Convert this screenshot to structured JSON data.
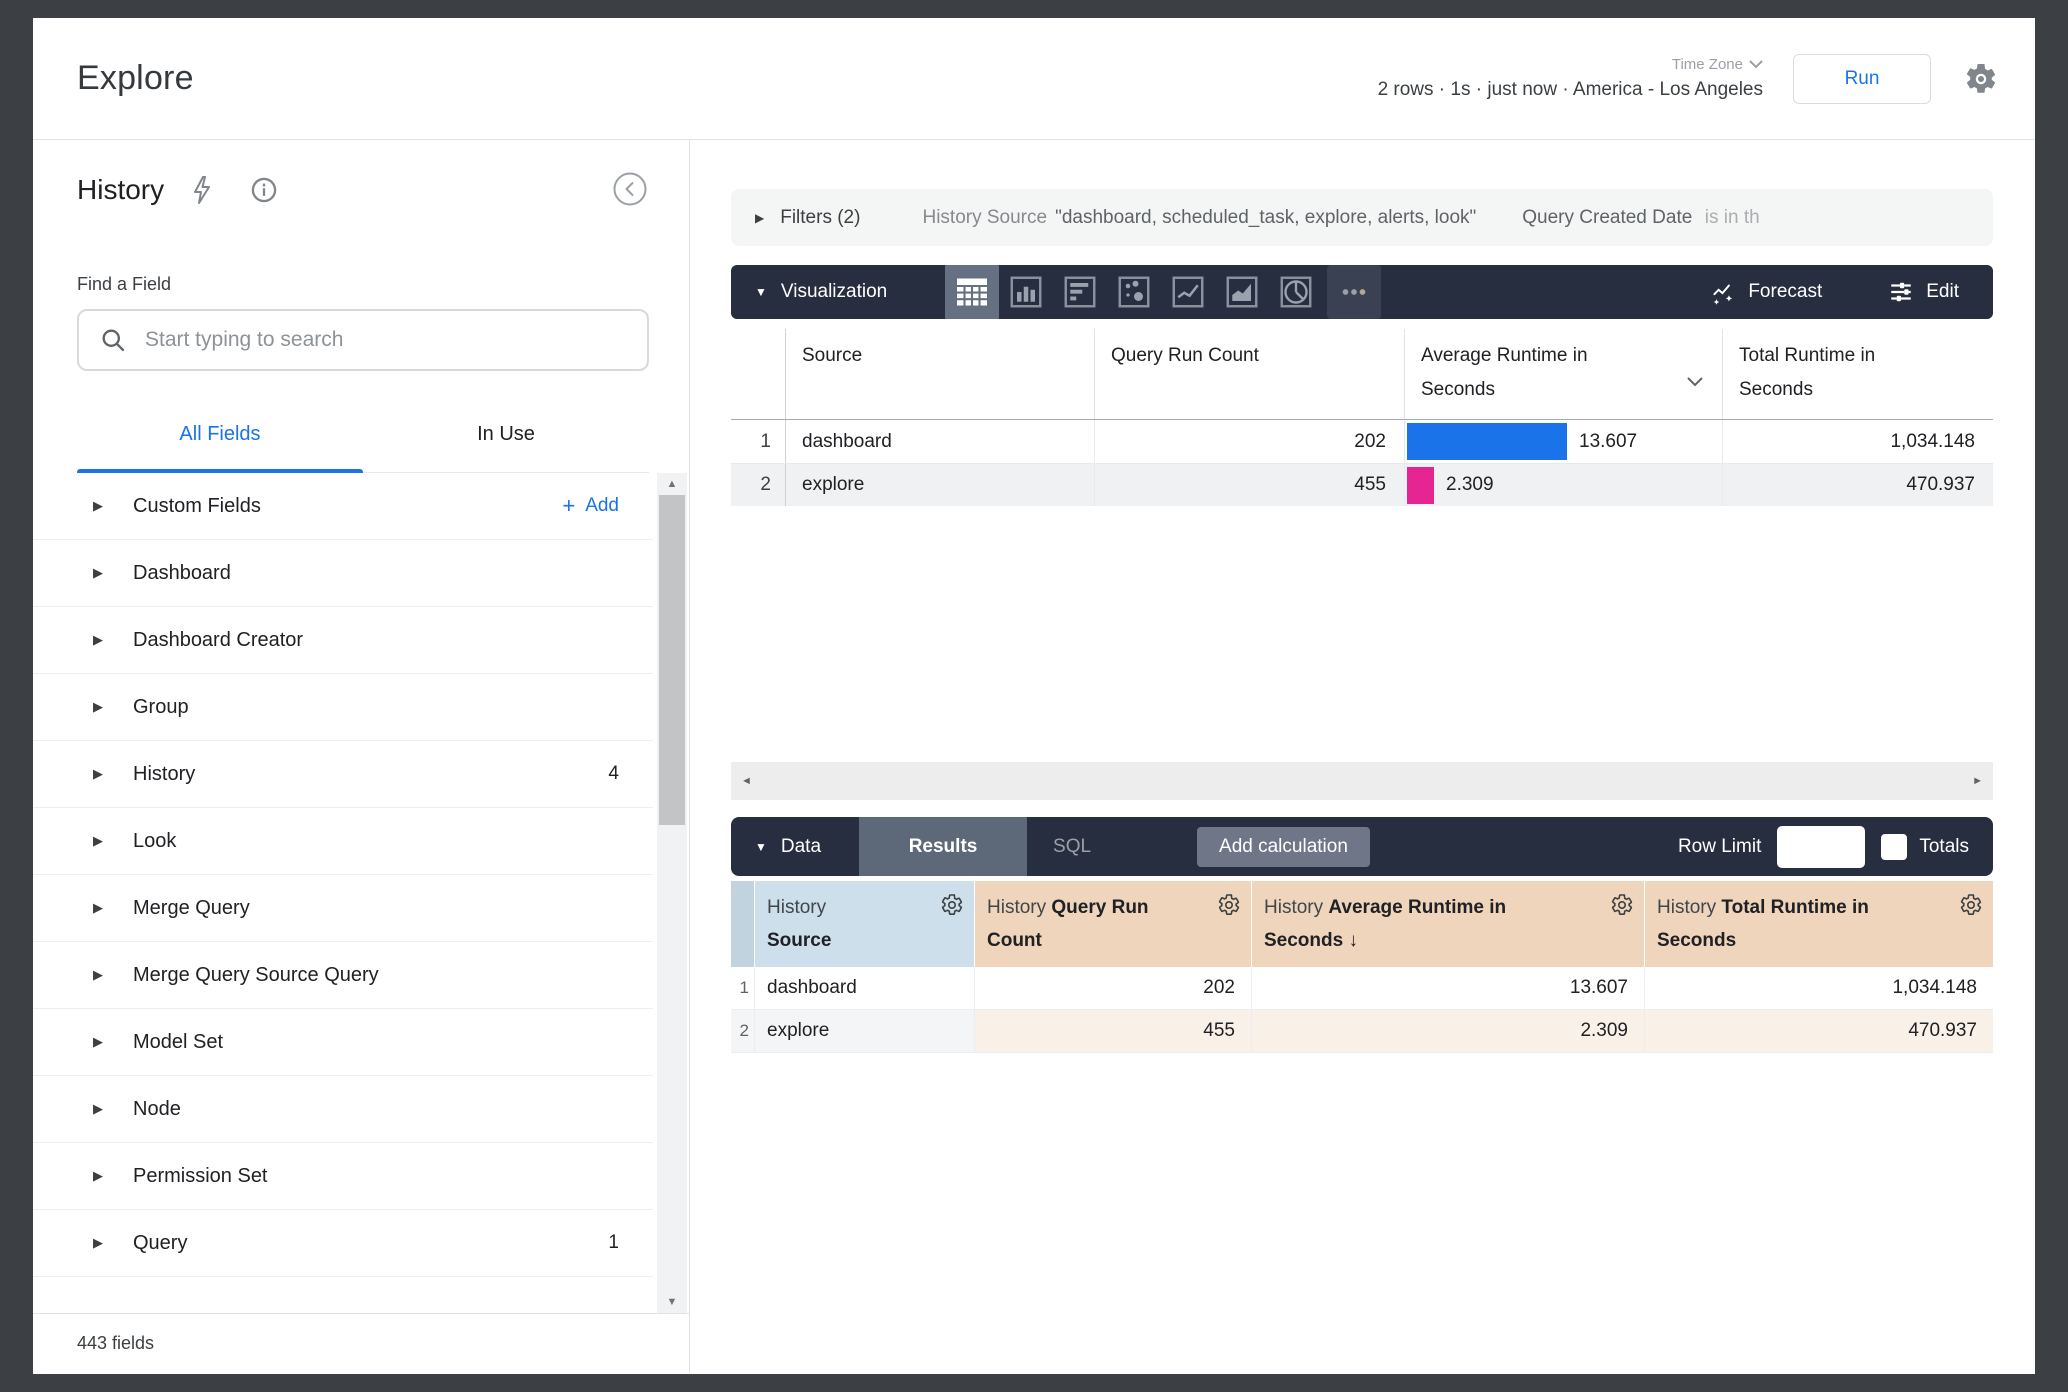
{
  "topbar": {
    "title": "Explore",
    "timezone_label": "Time Zone",
    "status": "2 rows · 1s · just now · America - Los Angeles",
    "run_label": "Run"
  },
  "sidebar": {
    "title": "History",
    "find_label": "Find a Field",
    "search_placeholder": "Start typing to search",
    "tabs": [
      {
        "label": "All Fields",
        "active": true
      },
      {
        "label": "In Use",
        "active": false
      }
    ],
    "items": [
      {
        "label": "Custom Fields",
        "add_plus": "+",
        "add_label": "Add"
      },
      {
        "label": "Dashboard"
      },
      {
        "label": "Dashboard Creator"
      },
      {
        "label": "Group"
      },
      {
        "label": "History",
        "badge": "4"
      },
      {
        "label": "Look"
      },
      {
        "label": "Merge Query"
      },
      {
        "label": "Merge Query Source Query"
      },
      {
        "label": "Model Set"
      },
      {
        "label": "Node"
      },
      {
        "label": "Permission Set"
      },
      {
        "label": "Query",
        "badge": "1"
      }
    ],
    "footer": "443 fields"
  },
  "filters": {
    "toggle_label": "Filters (2)",
    "filter1_field": "History Source",
    "filter1_value": "\"dashboard, scheduled_task, explore, alerts, look\"",
    "filter2_field": "Query Created Date",
    "filter2_value": "is in th"
  },
  "vis": {
    "label": "Visualization",
    "icons": [
      "table",
      "column-chart",
      "bar-chart",
      "scatter",
      "line-chart",
      "area-chart",
      "pie-chart",
      "more"
    ],
    "selected_icon": "table",
    "forecast_label": "Forecast",
    "edit_label": "Edit"
  },
  "vis_table": {
    "headers": [
      "Source",
      "Query Run Count",
      "Average Runtime in Seconds",
      "Total Runtime in Seconds"
    ],
    "rows": [
      {
        "num": "1",
        "source": "dashboard",
        "count": "202",
        "avg": "13.607",
        "avg_numeric": 13.607,
        "total": "1,034.148",
        "bar_color": "#1a73e8"
      },
      {
        "num": "2",
        "source": "explore",
        "count": "455",
        "avg": "2.309",
        "avg_numeric": 2.309,
        "total": "470.937",
        "bar_color": "#e52592"
      }
    ]
  },
  "data_panel": {
    "label": "Data",
    "tab_results": "Results",
    "tab_sql": "SQL",
    "add_calculation_label": "Add calculation",
    "row_limit_label": "Row Limit",
    "row_limit_value": "",
    "totals_label": "Totals"
  },
  "data_table": {
    "headers": [
      {
        "prefix": "History",
        "field": "Source"
      },
      {
        "prefix": "History",
        "field": "Query Run Count"
      },
      {
        "prefix": "History",
        "field": "Average Runtime in Seconds",
        "sort": " ↓"
      },
      {
        "prefix": "History",
        "field": "Total Runtime in Seconds"
      }
    ],
    "rows": [
      {
        "num": "1",
        "cells": [
          "dashboard",
          "202",
          "13.607",
          "1,034.148"
        ]
      },
      {
        "num": "2",
        "cells": [
          "explore",
          "455",
          "2.309",
          "470.937"
        ]
      }
    ]
  },
  "glyphs": {
    "tri_right": "▶",
    "tri_down": "▼",
    "arrow_up": "▲",
    "arrow_down": "▼",
    "arrow_left": "◄",
    "arrow_right": "►"
  },
  "colors": {
    "accent": "#1a73e8",
    "bar_blue": "#1a73e8",
    "bar_pink": "#e52592",
    "dark_bar": "#272e3f",
    "dimension_header_bg": "#cddfea",
    "measure_header_bg": "#eed5bc"
  },
  "chart_data": {
    "type": "table",
    "title": "History explore results",
    "columns": [
      "Source",
      "Query Run Count",
      "Average Runtime in Seconds",
      "Total Runtime in Seconds"
    ],
    "rows": [
      [
        "dashboard",
        202,
        13.607,
        1034.148
      ],
      [
        "explore",
        455,
        2.309,
        470.937
      ]
    ],
    "inline_bar_column": "Average Runtime in Seconds",
    "inline_bar_colors": [
      "#1a73e8",
      "#e52592"
    ],
    "sorted_by": {
      "column": "Average Runtime in Seconds",
      "direction": "desc"
    }
  }
}
